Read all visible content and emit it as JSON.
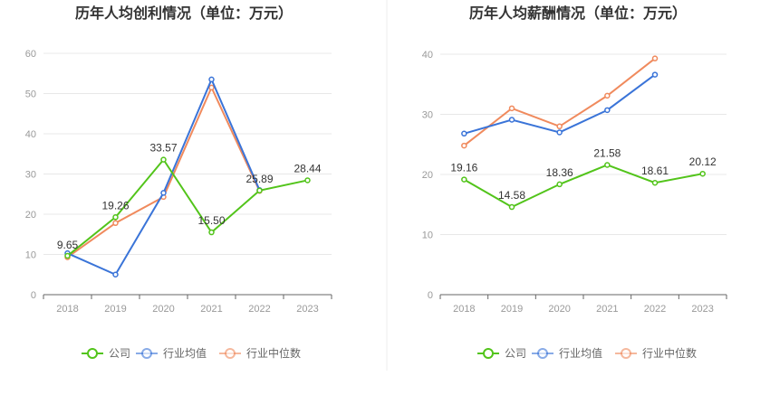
{
  "colors": {
    "company": "#52c41a",
    "industry_avg": "#3a74d8",
    "industry_median": "#f08a5d",
    "grid": "#e8e8e8",
    "axis": "#666666",
    "divider": "#eeeeee"
  },
  "legend": {
    "company": "公司",
    "industry_avg": "行业均值",
    "industry_median": "行业中位数"
  },
  "chart_data": [
    {
      "type": "line",
      "title": "历年人均创利情况（单位：万元）",
      "categories": [
        "2018",
        "2019",
        "2020",
        "2021",
        "2022",
        "2023"
      ],
      "ylim": [
        0,
        60
      ],
      "yticks": [
        0,
        10,
        20,
        30,
        40,
        50,
        60
      ],
      "grid": true,
      "legend_position": "bottom",
      "series": [
        {
          "key": "company",
          "name": "公司",
          "values": [
            9.65,
            19.26,
            33.57,
            15.5,
            25.89,
            28.44
          ],
          "labels": [
            "9.65",
            "19.26",
            "33.57",
            "15.50",
            "25.89",
            "28.44"
          ]
        },
        {
          "key": "industry_avg",
          "name": "行业均值",
          "values": [
            10.3,
            5.0,
            25.3,
            53.5,
            26.0,
            null
          ]
        },
        {
          "key": "industry_median",
          "name": "行业中位数",
          "values": [
            9.3,
            17.8,
            24.3,
            51.5,
            25.8,
            null
          ]
        }
      ]
    },
    {
      "type": "line",
      "title": "历年人均薪酬情况（单位：万元）",
      "categories": [
        "2018",
        "2019",
        "2020",
        "2021",
        "2022",
        "2023"
      ],
      "ylim": [
        0,
        40
      ],
      "yticks": [
        0,
        10,
        20,
        30,
        40
      ],
      "grid": true,
      "legend_position": "bottom",
      "series": [
        {
          "key": "company",
          "name": "公司",
          "values": [
            19.16,
            14.58,
            18.36,
            21.58,
            18.61,
            20.12
          ],
          "labels": [
            "19.16",
            "14.58",
            "18.36",
            "21.58",
            "18.61",
            "20.12"
          ]
        },
        {
          "key": "industry_avg",
          "name": "行业均值",
          "values": [
            26.8,
            29.1,
            27.0,
            30.7,
            36.6,
            null
          ]
        },
        {
          "key": "industry_median",
          "name": "行业中位数",
          "values": [
            24.8,
            31.0,
            28.0,
            33.1,
            39.3,
            null
          ]
        }
      ]
    }
  ]
}
